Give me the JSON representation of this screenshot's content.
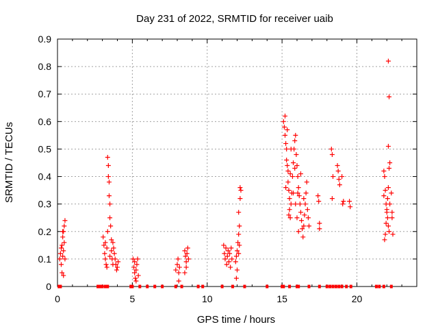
{
  "chart_data": {
    "type": "scatter",
    "title": "Day 231 of 2022, SRMTID for receiver uaib",
    "xlabel": "GPS time / hours",
    "ylabel": "SRMTID / TECUs",
    "xlim": [
      0,
      24
    ],
    "ylim": [
      0,
      0.9
    ],
    "x_ticks": [
      0,
      5,
      10,
      15,
      20
    ],
    "y_ticks": [
      0,
      0.1,
      0.2,
      0.3,
      0.4,
      0.5,
      0.6,
      0.7,
      0.8,
      0.9
    ],
    "x_tick_labels": [
      "0",
      "5",
      "10",
      "15",
      "20"
    ],
    "y_tick_labels": [
      "0",
      "0.1",
      "0.2",
      "0.3",
      "0.4",
      "0.5",
      "0.6",
      "0.7",
      "0.8",
      "0.9"
    ],
    "grid": true,
    "marker": "+",
    "marker_color": "#ff0000",
    "series": [
      {
        "name": "SRMTID",
        "points": [
          [
            0.15,
            0.1
          ],
          [
            0.2,
            0.12
          ],
          [
            0.25,
            0.08
          ],
          [
            0.3,
            0.15
          ],
          [
            0.3,
            0.05
          ],
          [
            0.35,
            0.18
          ],
          [
            0.35,
            0.11
          ],
          [
            0.4,
            0.2
          ],
          [
            0.4,
            0.13
          ],
          [
            0.4,
            0.04
          ],
          [
            0.45,
            0.16
          ],
          [
            0.45,
            0.22
          ],
          [
            0.5,
            0.24
          ],
          [
            0.5,
            0.1
          ],
          [
            0.35,
            0.2
          ],
          [
            0.25,
            0.14
          ],
          [
            3.05,
            0.18
          ],
          [
            3.1,
            0.15
          ],
          [
            3.15,
            0.12
          ],
          [
            3.2,
            0.1
          ],
          [
            3.25,
            0.08
          ],
          [
            3.3,
            0.14
          ],
          [
            3.35,
            0.2
          ],
          [
            3.35,
            0.47
          ],
          [
            3.4,
            0.44
          ],
          [
            3.4,
            0.4
          ],
          [
            3.45,
            0.38
          ],
          [
            3.45,
            0.33
          ],
          [
            3.5,
            0.3
          ],
          [
            3.5,
            0.25
          ],
          [
            3.55,
            0.22
          ],
          [
            3.6,
            0.17
          ],
          [
            3.6,
            0.13
          ],
          [
            3.65,
            0.1
          ],
          [
            3.7,
            0.08
          ],
          [
            3.75,
            0.14
          ],
          [
            3.8,
            0.12
          ],
          [
            3.85,
            0.1
          ],
          [
            3.9,
            0.08
          ],
          [
            3.95,
            0.06
          ],
          [
            4.0,
            0.07
          ],
          [
            4.05,
            0.09
          ],
          [
            3.7,
            0.16
          ],
          [
            3.5,
            0.11
          ],
          [
            3.3,
            0.07
          ],
          [
            3.2,
            0.16
          ],
          [
            5.05,
            0.1
          ],
          [
            5.1,
            0.07
          ],
          [
            5.15,
            0.05
          ],
          [
            5.2,
            0.03
          ],
          [
            5.25,
            0.06
          ],
          [
            5.3,
            0.08
          ],
          [
            5.35,
            0.1
          ],
          [
            5.4,
            0.04
          ],
          [
            5.15,
            0.09
          ],
          [
            5.25,
            0.02
          ],
          [
            7.9,
            0.06
          ],
          [
            8.0,
            0.08
          ],
          [
            8.05,
            0.1
          ],
          [
            8.1,
            0.05
          ],
          [
            8.15,
            0.07
          ],
          [
            8.1,
            0.02
          ],
          [
            8.5,
            0.13
          ],
          [
            8.55,
            0.11
          ],
          [
            8.6,
            0.09
          ],
          [
            8.65,
            0.12
          ],
          [
            8.7,
            0.14
          ],
          [
            8.75,
            0.1
          ],
          [
            8.6,
            0.07
          ],
          [
            8.5,
            0.05
          ],
          [
            11.1,
            0.15
          ],
          [
            11.15,
            0.12
          ],
          [
            11.2,
            0.1
          ],
          [
            11.25,
            0.14
          ],
          [
            11.3,
            0.08
          ],
          [
            11.35,
            0.11
          ],
          [
            11.4,
            0.13
          ],
          [
            11.45,
            0.09
          ],
          [
            11.5,
            0.12
          ],
          [
            11.55,
            0.07
          ],
          [
            11.6,
            0.14
          ],
          [
            11.65,
            0.1
          ],
          [
            11.9,
            0.09
          ],
          [
            11.95,
            0.11
          ],
          [
            12.0,
            0.13
          ],
          [
            12.05,
            0.16
          ],
          [
            12.1,
            0.19
          ],
          [
            12.1,
            0.27
          ],
          [
            12.15,
            0.22
          ],
          [
            12.2,
            0.32
          ],
          [
            12.2,
            0.36
          ],
          [
            12.25,
            0.35
          ],
          [
            12.0,
            0.06
          ],
          [
            11.95,
            0.03
          ],
          [
            12.1,
            0.12
          ],
          [
            12.15,
            0.15
          ],
          [
            15.1,
            0.6
          ],
          [
            15.15,
            0.58
          ],
          [
            15.2,
            0.55
          ],
          [
            15.25,
            0.52
          ],
          [
            15.3,
            0.5
          ],
          [
            15.3,
            0.46
          ],
          [
            15.35,
            0.44
          ],
          [
            15.4,
            0.42
          ],
          [
            15.4,
            0.38
          ],
          [
            15.45,
            0.35
          ],
          [
            15.5,
            0.32
          ],
          [
            15.5,
            0.28
          ],
          [
            15.55,
            0.25
          ],
          [
            15.6,
            0.3
          ],
          [
            15.65,
            0.34
          ],
          [
            15.7,
            0.4
          ],
          [
            15.75,
            0.45
          ],
          [
            15.8,
            0.5
          ],
          [
            15.85,
            0.53
          ],
          [
            15.9,
            0.55
          ],
          [
            15.95,
            0.48
          ],
          [
            16.0,
            0.44
          ],
          [
            16.05,
            0.4
          ],
          [
            16.1,
            0.36
          ],
          [
            16.15,
            0.33
          ],
          [
            16.2,
            0.3
          ],
          [
            16.25,
            0.27
          ],
          [
            16.3,
            0.24
          ],
          [
            16.35,
            0.21
          ],
          [
            16.4,
            0.18
          ],
          [
            16.45,
            0.22
          ],
          [
            16.5,
            0.26
          ],
          [
            16.55,
            0.3
          ],
          [
            16.6,
            0.34
          ],
          [
            16.65,
            0.38
          ],
          [
            16.7,
            0.28
          ],
          [
            16.75,
            0.25
          ],
          [
            16.8,
            0.22
          ],
          [
            15.2,
            0.62
          ],
          [
            15.35,
            0.57
          ],
          [
            15.6,
            0.5
          ],
          [
            15.75,
            0.34
          ],
          [
            15.9,
            0.3
          ],
          [
            16.0,
            0.25
          ],
          [
            16.1,
            0.2
          ],
          [
            15.45,
            0.26
          ],
          [
            15.25,
            0.36
          ],
          [
            15.55,
            0.41
          ],
          [
            15.85,
            0.43
          ],
          [
            16.05,
            0.34
          ],
          [
            16.25,
            0.41
          ],
          [
            16.45,
            0.32
          ],
          [
            17.4,
            0.33
          ],
          [
            17.45,
            0.31
          ],
          [
            17.5,
            0.23
          ],
          [
            17.5,
            0.21
          ],
          [
            18.3,
            0.5
          ],
          [
            18.35,
            0.48
          ],
          [
            18.4,
            0.4
          ],
          [
            18.35,
            0.32
          ],
          [
            18.7,
            0.44
          ],
          [
            18.75,
            0.42
          ],
          [
            18.8,
            0.39
          ],
          [
            18.85,
            0.37
          ],
          [
            19.0,
            0.4
          ],
          [
            19.05,
            0.3
          ],
          [
            19.1,
            0.31
          ],
          [
            19.5,
            0.31
          ],
          [
            19.55,
            0.29
          ],
          [
            21.8,
            0.42
          ],
          [
            21.85,
            0.4
          ],
          [
            21.9,
            0.35
          ],
          [
            21.95,
            0.3
          ],
          [
            22.0,
            0.28
          ],
          [
            22.05,
            0.25
          ],
          [
            22.1,
            0.22
          ],
          [
            22.15,
            0.2
          ],
          [
            21.85,
            0.17
          ],
          [
            21.9,
            0.19
          ],
          [
            21.95,
            0.23
          ],
          [
            22.0,
            0.27
          ],
          [
            22.05,
            0.32
          ],
          [
            22.1,
            0.36
          ],
          [
            22.15,
            0.43
          ],
          [
            22.2,
            0.45
          ],
          [
            22.1,
            0.51
          ],
          [
            22.15,
            0.69
          ],
          [
            22.1,
            0.82
          ],
          [
            22.3,
            0.34
          ],
          [
            22.35,
            0.27
          ],
          [
            22.35,
            0.25
          ],
          [
            22.4,
            0.19
          ],
          [
            22.2,
            0.3
          ],
          [
            21.8,
            0.33
          ]
        ]
      }
    ],
    "zero_markers_x": [
      0.1,
      0.2,
      2.7,
      2.85,
      3.0,
      3.2,
      3.35,
      4.9,
      5.0,
      5.5,
      6.0,
      6.5,
      7.0,
      7.9,
      8.3,
      9.4,
      9.7,
      11.0,
      11.7,
      12.5,
      14.0,
      15.0,
      15.1,
      15.5,
      16.0,
      16.1,
      16.8,
      17.5,
      18.0,
      18.2,
      18.4,
      18.6,
      18.8,
      19.0,
      19.3,
      19.6,
      21.3,
      21.5,
      21.8,
      22.3
    ]
  }
}
